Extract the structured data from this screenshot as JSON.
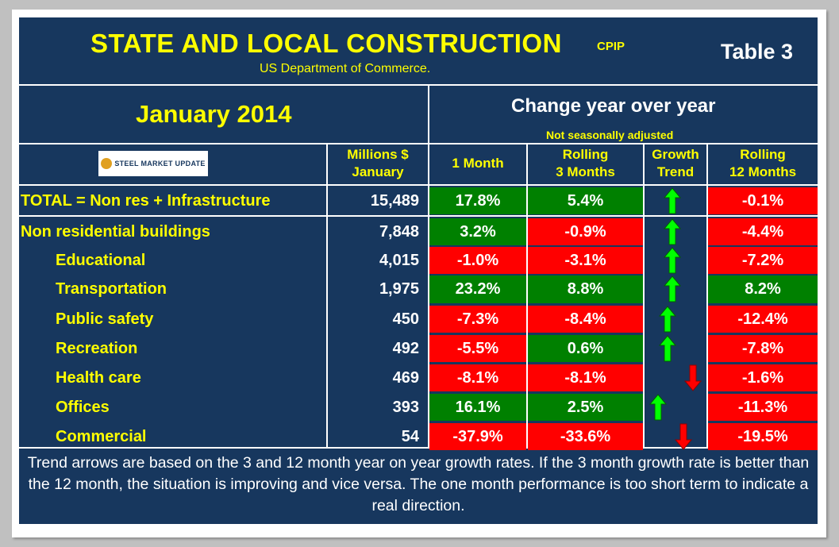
{
  "header": {
    "title": "STATE AND LOCAL CONSTRUCTION",
    "title_tag": "CPIP",
    "table_label": "Table 3",
    "subtitle": "US Department of Commerce.",
    "period": "January 2014",
    "change_heading": "Change year over year",
    "change_note": "Not seasonally adjusted",
    "logo_text": "STEEL MARKET UPDATE"
  },
  "columns": {
    "millions": "Millions $",
    "millions_sub": "January",
    "one_month": "1 Month",
    "rolling3": "Rolling",
    "rolling3_sub": "3 Months",
    "growth": "Growth",
    "growth_sub": "Trend",
    "rolling12": "Rolling",
    "rolling12_sub": "12 Months"
  },
  "colors": {
    "positive": "#008000",
    "negative": "#ff0000",
    "arrow_up": "#00ff00",
    "arrow_down": "#ff0000",
    "background": "#17375e"
  },
  "chart_data": {
    "type": "table",
    "rows": [
      {
        "label": "TOTAL = Non res + Infrastructure",
        "millions": "15,489",
        "one_month": "17.8%",
        "rolling3": "5.4%",
        "trend": "up",
        "rolling12": "-0.1%"
      },
      {
        "label": "Non residential buildings",
        "millions": "7,848",
        "one_month": "3.2%",
        "rolling3": "-0.9%",
        "trend": "up",
        "rolling12": "-4.4%"
      },
      {
        "label": "Educational",
        "millions": "4,015",
        "one_month": "-1.0%",
        "rolling3": "-3.1%",
        "trend": "up",
        "rolling12": "-7.2%"
      },
      {
        "label": "Transportation",
        "millions": "1,975",
        "one_month": "23.2%",
        "rolling3": "8.8%",
        "trend": "up",
        "rolling12": "8.2%"
      },
      {
        "label": "Public safety",
        "millions": "450",
        "one_month": "-7.3%",
        "rolling3": "-8.4%",
        "trend": "up",
        "rolling12": "-12.4%"
      },
      {
        "label": "Recreation",
        "millions": "492",
        "one_month": "-5.5%",
        "rolling3": "0.6%",
        "trend": "up",
        "rolling12": "-7.8%"
      },
      {
        "label": "Health care",
        "millions": "469",
        "one_month": "-8.1%",
        "rolling3": "-8.1%",
        "trend": "down",
        "rolling12": "-1.6%"
      },
      {
        "label": "Offices",
        "millions": "393",
        "one_month": "16.1%",
        "rolling3": "2.5%",
        "trend": "up",
        "rolling12": "-11.3%"
      },
      {
        "label": "Commercial",
        "millions": "54",
        "one_month": "-37.9%",
        "rolling3": "-33.6%",
        "trend": "down",
        "rolling12": "-19.5%"
      }
    ]
  },
  "footnote": "Trend arrows are based on the 3 and 12 month year on year growth rates. If the 3 month growth rate is better than the 12 month, the situation is improving and vice versa. The one month performance is too short term to indicate a real direction."
}
